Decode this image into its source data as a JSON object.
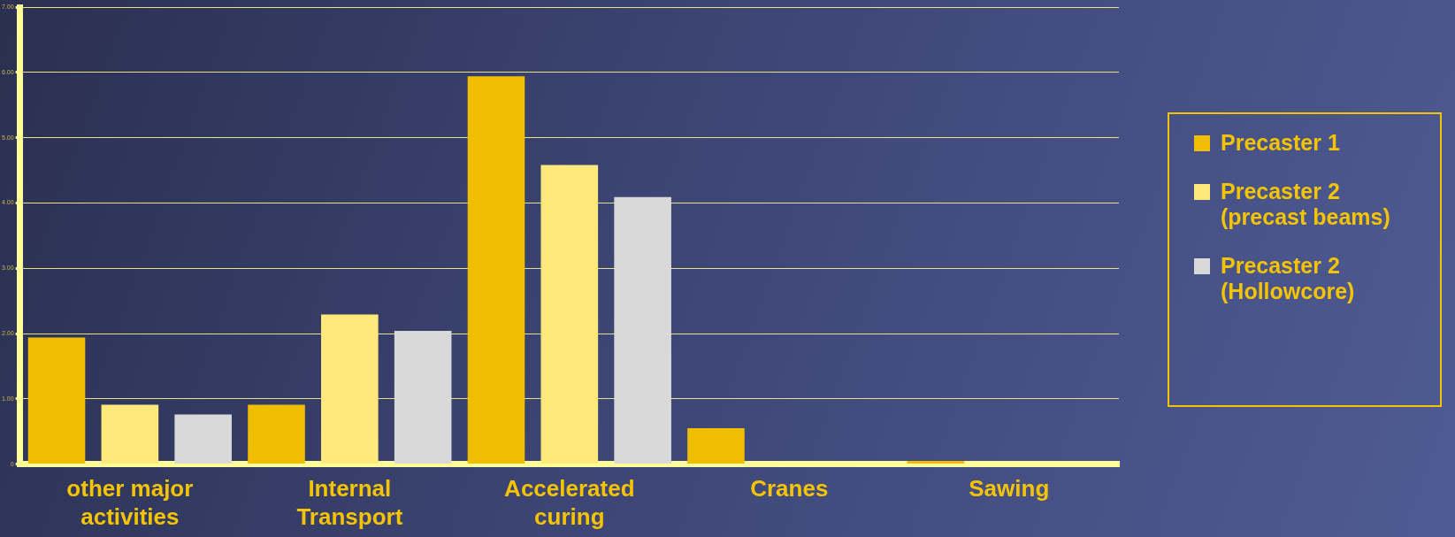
{
  "chart_data": {
    "type": "bar",
    "categories": [
      "other major activities",
      "Internal Transport",
      "Accelerated curing",
      "Cranes",
      "Sawing"
    ],
    "series": [
      {
        "name": "Precaster 1",
        "color": "#f0be00",
        "values": [
          1.94,
          0.91,
          5.94,
          0.55,
          0.05
        ]
      },
      {
        "name": "Precaster 2 (precast beams)",
        "color": "#ffe97a",
        "values": [
          0.91,
          2.29,
          4.58,
          0,
          0
        ]
      },
      {
        "name": "Precaster 2 (Hollowcore)",
        "color": "#d9d9d9",
        "values": [
          0.76,
          2.04,
          4.09,
          0,
          0
        ]
      }
    ],
    "ylim": [
      0,
      7
    ],
    "yticks": [
      0,
      {
        "value": 1,
        "label": "1.00"
      },
      {
        "value": 2,
        "label": "2.00"
      },
      {
        "value": 3,
        "label": "3.00"
      },
      {
        "value": 4,
        "label": "4.00"
      },
      {
        "value": 5,
        "label": "5.00"
      },
      {
        "value": 6,
        "label": "6.00"
      },
      {
        "value": 7,
        "label": "7.00"
      }
    ],
    "grid": "y",
    "legend": "right"
  }
}
